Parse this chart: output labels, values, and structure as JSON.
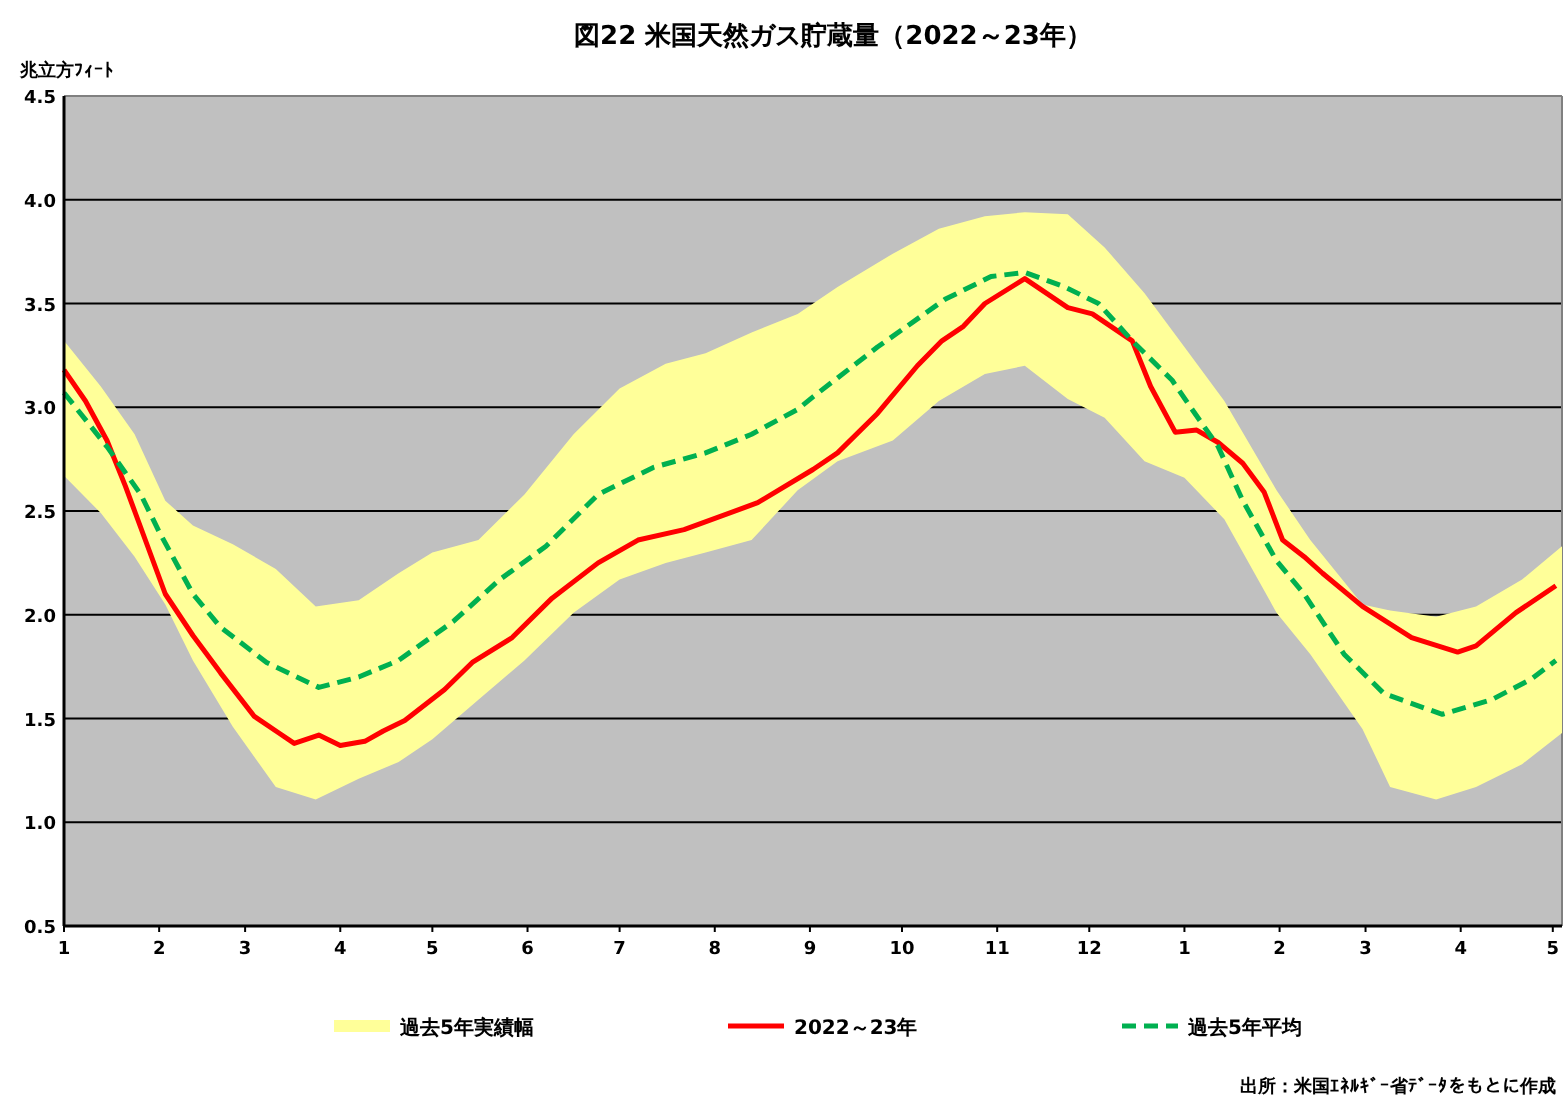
{
  "chart_data": {
    "type": "line",
    "title": "図22 米国天然ガス貯蔵量（2022～23年）",
    "ylabel": "兆立方ﾌｨｰﾄ",
    "annotations": [
      "出所：米国ｴﾈﾙｷﾞｰ省ﾃﾞｰﾀをもとに作成"
    ],
    "xlim": [
      "2022-01-01",
      "2023-05-04"
    ],
    "xticks": [
      {
        "value": "2022-01-01",
        "label": "1"
      },
      {
        "value": "2022-02-01",
        "label": "2"
      },
      {
        "value": "2022-03-01",
        "label": "3"
      },
      {
        "value": "2022-04-01",
        "label": "4"
      },
      {
        "value": "2022-05-01",
        "label": "5"
      },
      {
        "value": "2022-06-01",
        "label": "6"
      },
      {
        "value": "2022-07-01",
        "label": "7"
      },
      {
        "value": "2022-08-01",
        "label": "8"
      },
      {
        "value": "2022-09-01",
        "label": "9"
      },
      {
        "value": "2022-10-01",
        "label": "10"
      },
      {
        "value": "2022-11-01",
        "label": "11"
      },
      {
        "value": "2022-12-01",
        "label": "12"
      },
      {
        "value": "2023-01-01",
        "label": "1"
      },
      {
        "value": "2023-02-01",
        "label": "2"
      },
      {
        "value": "2023-03-01",
        "label": "3"
      },
      {
        "value": "2023-04-01",
        "label": "4"
      },
      {
        "value": "2023-05-01",
        "label": "5"
      }
    ],
    "ylim": [
      0.5,
      4.5
    ],
    "yticks": [
      0.5,
      {
        "value": 1,
        "label": "1.0"
      },
      1.5,
      {
        "value": 2,
        "label": "2.0"
      },
      2.5,
      {
        "value": 3,
        "label": "3.0"
      },
      3.5,
      {
        "value": 4,
        "label": "4.0"
      },
      4.5
    ],
    "grid": "y",
    "legend": "bottom",
    "series": [
      {
        "name": "過去5年実績幅",
        "type": "area",
        "color": "#ffff99",
        "x": [
          "2022-01-01",
          "2022-01-13",
          "2022-01-24",
          "2022-02-03",
          "2022-02-12",
          "2022-02-25",
          "2022-03-11",
          "2022-03-24",
          "2022-04-07",
          "2022-04-20",
          "2022-05-01",
          "2022-05-16",
          "2022-05-31",
          "2022-06-16",
          "2022-07-01",
          "2022-07-16",
          "2022-07-29",
          "2022-08-13",
          "2022-08-28",
          "2022-09-10",
          "2022-09-28",
          "2022-10-13",
          "2022-10-28",
          "2022-11-10",
          "2022-11-24",
          "2022-12-06",
          "2022-12-19",
          "2023-01-01",
          "2023-01-14",
          "2023-01-31",
          "2023-02-11",
          "2023-02-28",
          "2023-03-09",
          "2023-03-24",
          "2023-04-06",
          "2023-04-21",
          "2023-05-04"
        ],
        "values": [
          null,
          null,
          null,
          null,
          null,
          null,
          null,
          null,
          null,
          null,
          null,
          null,
          null,
          null,
          null,
          null,
          null,
          null,
          null,
          null,
          null,
          null,
          null,
          null,
          null,
          null,
          null,
          null,
          null,
          null,
          null,
          null,
          null,
          null,
          null,
          null,
          null
        ],
        "upper": [
          3.32,
          3.1,
          2.87,
          2.55,
          2.43,
          2.34,
          2.22,
          2.04,
          2.07,
          2.2,
          2.3,
          2.36,
          2.58,
          2.87,
          3.09,
          3.21,
          3.26,
          3.36,
          3.45,
          3.58,
          3.74,
          3.86,
          3.92,
          3.94,
          3.93,
          3.77,
          3.55,
          3.29,
          3.03,
          2.6,
          2.36,
          2.05,
          2.02,
          1.99,
          2.04,
          2.17,
          2.33
        ],
        "lower": [
          2.67,
          2.49,
          2.28,
          2.05,
          1.78,
          1.46,
          1.17,
          1.11,
          1.21,
          1.29,
          1.4,
          1.59,
          1.78,
          2.01,
          2.17,
          2.25,
          2.3,
          2.36,
          2.6,
          2.74,
          2.84,
          3.03,
          3.16,
          3.2,
          3.04,
          2.95,
          2.74,
          2.66,
          2.46,
          2.01,
          1.81,
          1.45,
          1.17,
          1.11,
          1.17,
          1.28,
          1.43
        ]
      },
      {
        "name": "2022～23年",
        "type": "line",
        "color": "#ff0000",
        "line_style": "solid",
        "x": [
          "2022-01-01",
          "2022-01-08",
          "2022-01-15",
          "2022-01-21",
          "2022-01-24",
          "2022-02-03",
          "2022-02-12",
          "2022-02-21",
          "2022-03-04",
          "2022-03-12",
          "2022-03-17",
          "2022-03-25",
          "2022-04-01",
          "2022-04-09",
          "2022-04-15",
          "2022-04-22",
          "2022-05-05",
          "2022-05-14",
          "2022-05-27",
          "2022-06-09",
          "2022-06-24",
          "2022-07-07",
          "2022-07-22",
          "2022-08-15",
          "2022-09-02",
          "2022-09-10",
          "2022-09-23",
          "2022-10-06",
          "2022-10-14",
          "2022-10-21",
          "2022-10-28",
          "2022-11-10",
          "2022-11-24",
          "2022-12-02",
          "2022-12-15",
          "2022-12-21",
          "2022-12-29",
          "2023-01-05",
          "2023-01-12",
          "2023-01-20",
          "2023-01-27",
          "2023-02-02",
          "2023-02-09",
          "2023-02-15",
          "2023-02-28",
          "2023-03-16",
          "2023-03-31",
          "2023-04-06",
          "2023-04-19",
          "2023-05-02"
        ],
        "values": [
          3.18,
          3.03,
          2.84,
          2.62,
          2.5,
          2.1,
          1.9,
          1.72,
          1.51,
          1.43,
          1.38,
          1.42,
          1.37,
          1.39,
          1.44,
          1.49,
          1.64,
          1.77,
          1.89,
          2.08,
          2.25,
          2.36,
          2.41,
          2.54,
          2.7,
          2.78,
          2.97,
          3.2,
          3.32,
          3.39,
          3.5,
          3.62,
          3.48,
          3.45,
          3.32,
          3.1,
          2.88,
          2.89,
          2.83,
          2.73,
          2.59,
          2.36,
          2.28,
          2.2,
          2.04,
          1.89,
          1.82,
          1.85,
          2.01,
          2.14
        ]
      },
      {
        "name": "過去5年平均",
        "type": "line",
        "color": "#00b050",
        "line_style": "dashed",
        "x": [
          "2022-01-01",
          "2022-01-15",
          "2022-01-26",
          "2022-02-01",
          "2022-02-12",
          "2022-02-21",
          "2022-03-08",
          "2022-03-25",
          "2022-04-07",
          "2022-04-20",
          "2022-05-08",
          "2022-05-23",
          "2022-06-07",
          "2022-06-24",
          "2022-07-12",
          "2022-07-29",
          "2022-08-13",
          "2022-08-28",
          "2022-09-02",
          "2022-09-23",
          "2022-10-15",
          "2022-10-30",
          "2022-11-10",
          "2022-11-23",
          "2022-12-04",
          "2022-12-15",
          "2022-12-28",
          "2023-01-03",
          "2023-01-12",
          "2023-01-20",
          "2023-01-31",
          "2023-02-09",
          "2023-02-22",
          "2023-03-07",
          "2023-03-26",
          "2023-04-11",
          "2023-04-24",
          "2023-05-02"
        ],
        "values": [
          3.07,
          2.81,
          2.58,
          2.4,
          2.1,
          1.94,
          1.77,
          1.65,
          1.7,
          1.78,
          1.97,
          2.17,
          2.33,
          2.58,
          2.71,
          2.78,
          2.87,
          2.99,
          3.05,
          3.29,
          3.52,
          3.63,
          3.65,
          3.58,
          3.5,
          3.32,
          3.13,
          3.0,
          2.81,
          2.55,
          2.26,
          2.1,
          1.81,
          1.62,
          1.52,
          1.59,
          1.69,
          1.78
        ]
      }
    ]
  }
}
